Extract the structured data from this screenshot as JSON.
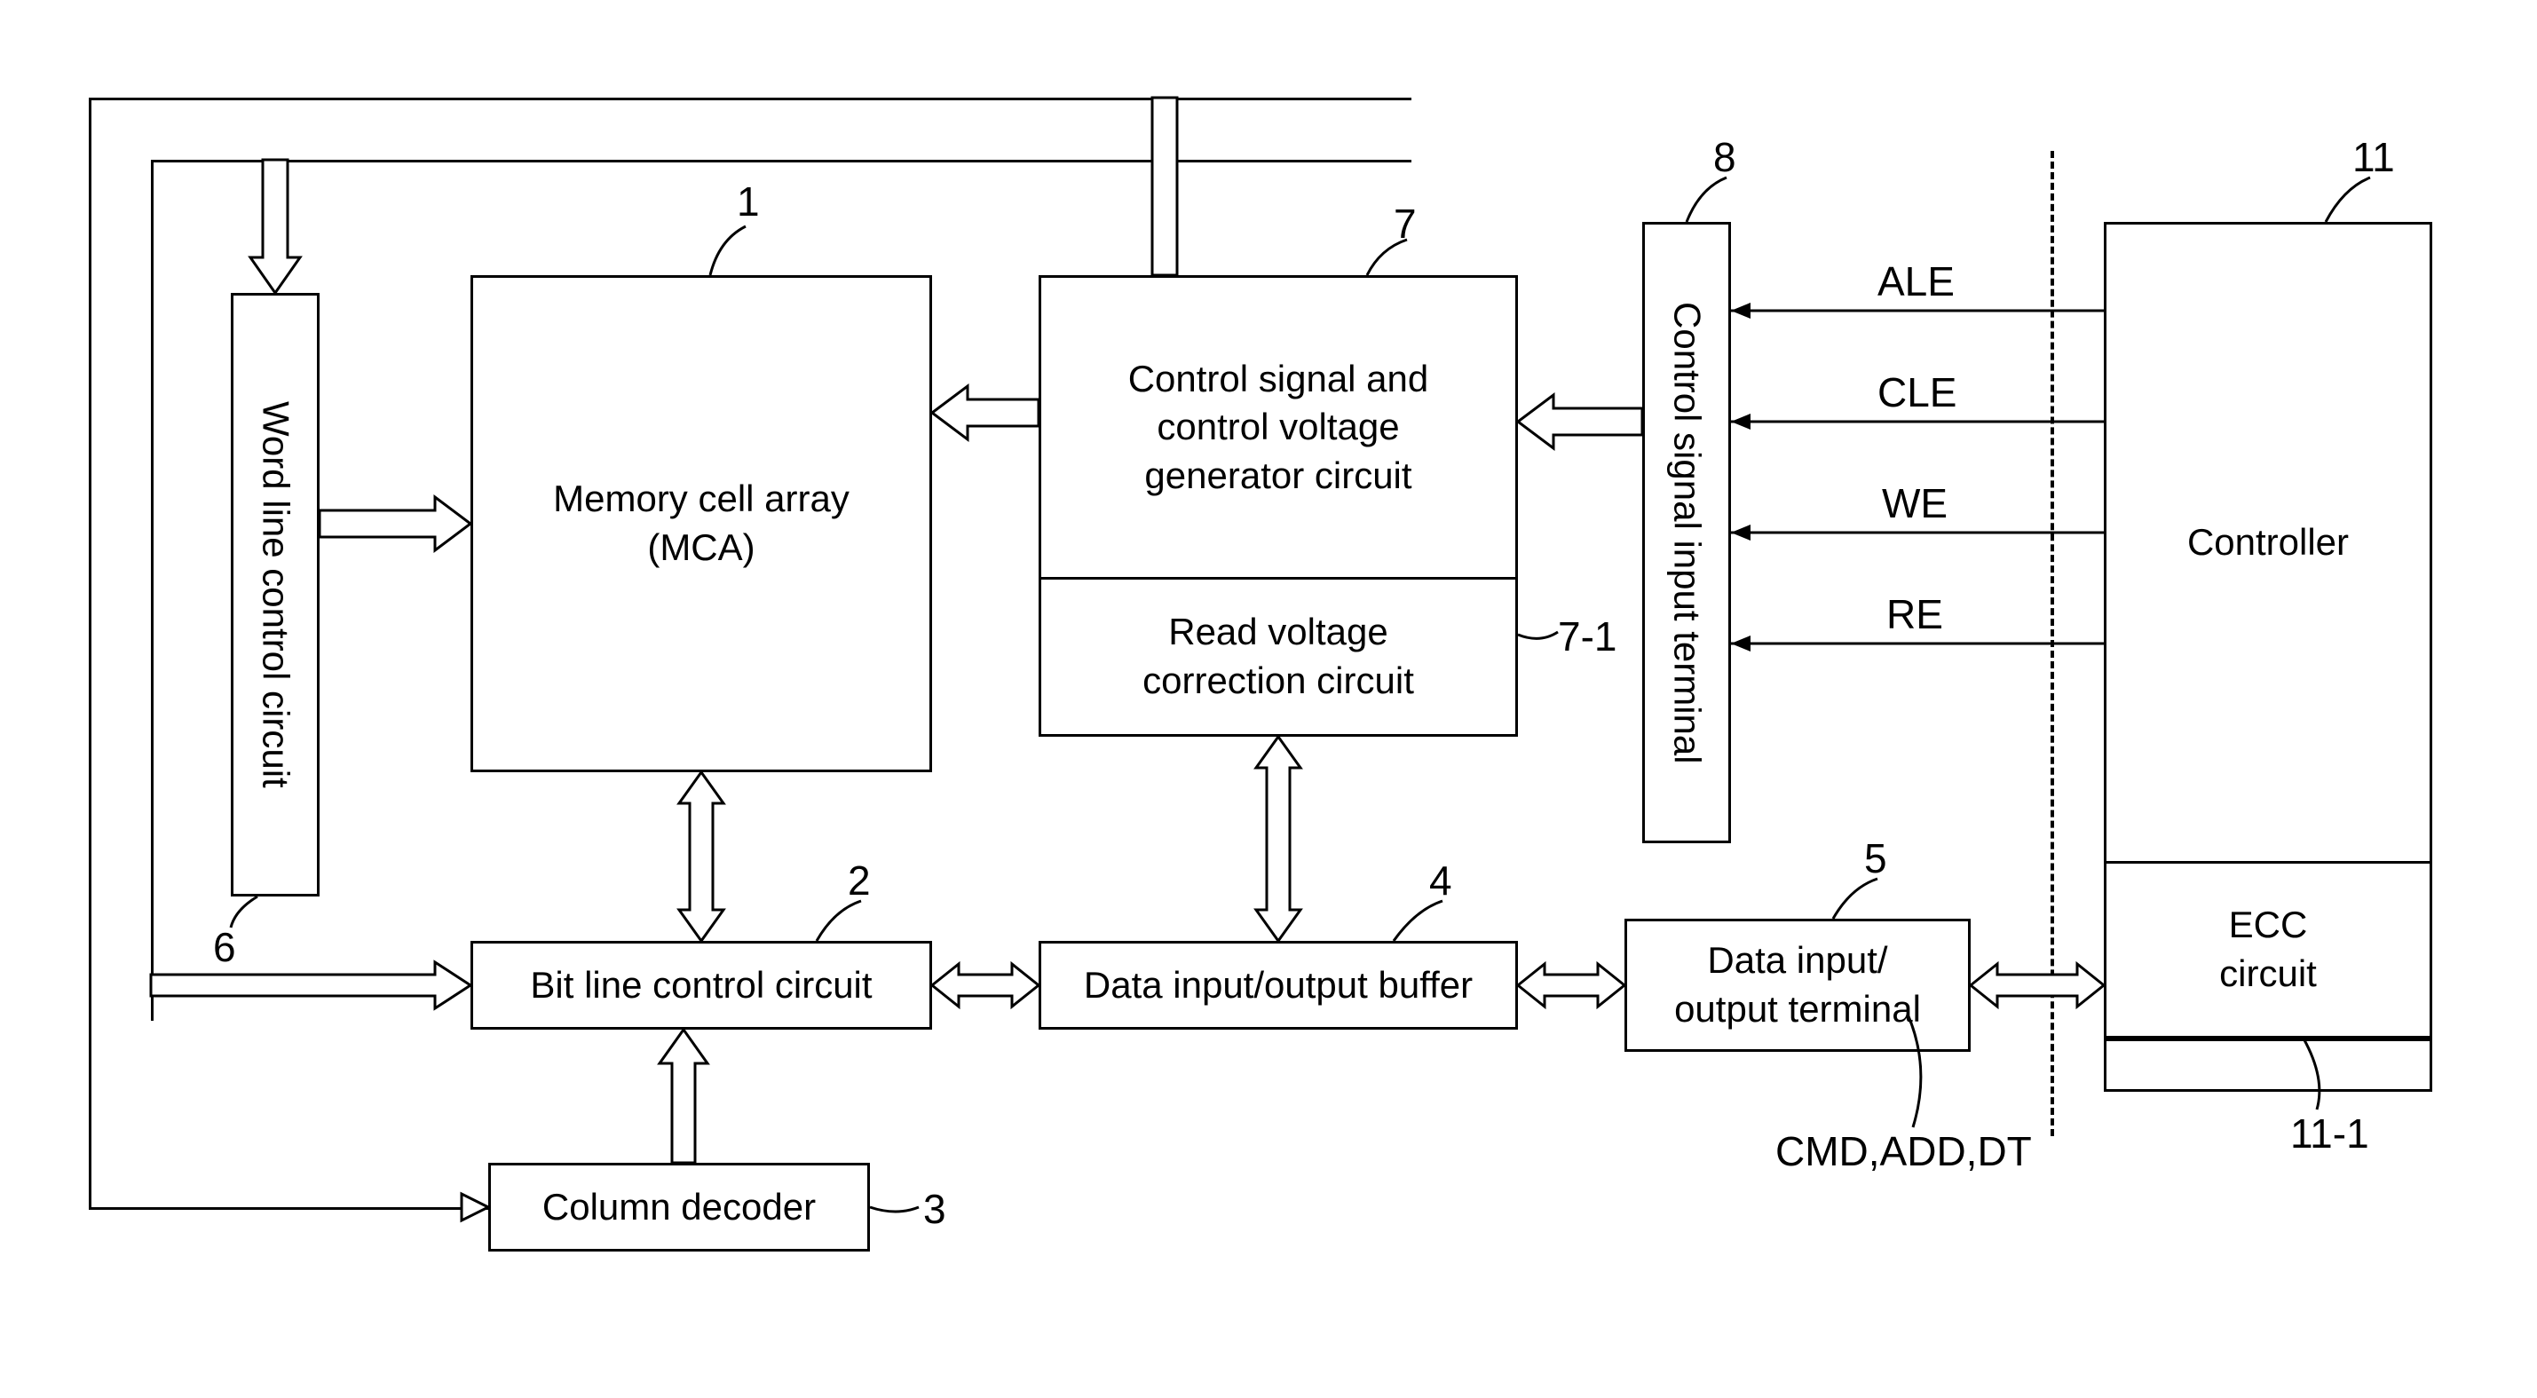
{
  "blocks": {
    "mca": {
      "label": "Memory cell array\n(MCA)",
      "ref": "1"
    },
    "blc": {
      "label": "Bit line control circuit",
      "ref": "2"
    },
    "cd": {
      "label": "Column decoder",
      "ref": "3"
    },
    "diob": {
      "label": "Data input/output buffer",
      "ref": "4"
    },
    "diot": {
      "label": "Data input/\noutput terminal",
      "ref": "5"
    },
    "wlc": {
      "label": "Word line control circuit",
      "ref": "6"
    },
    "csvg": {
      "label": "Control signal and\ncontrol voltage\ngenerator circuit",
      "ref": "7"
    },
    "rvc": {
      "label": "Read voltage\ncorrection circuit",
      "ref": "7-1"
    },
    "csit": {
      "label": "Control signal input terminal",
      "ref": "8"
    },
    "ctrl": {
      "label": "Controller",
      "ref": "11"
    },
    "ecc": {
      "label": "ECC\ncircuit",
      "ref": "11-1"
    }
  },
  "signals": {
    "ale": "ALE",
    "cle": "CLE",
    "we": "WE",
    "re": "RE",
    "bus": "CMD,ADD,DT"
  },
  "style": {
    "stroke": "#000000",
    "stroke_width": 3,
    "font_size_block": 42,
    "font_size_label": 46,
    "background": "#ffffff"
  }
}
